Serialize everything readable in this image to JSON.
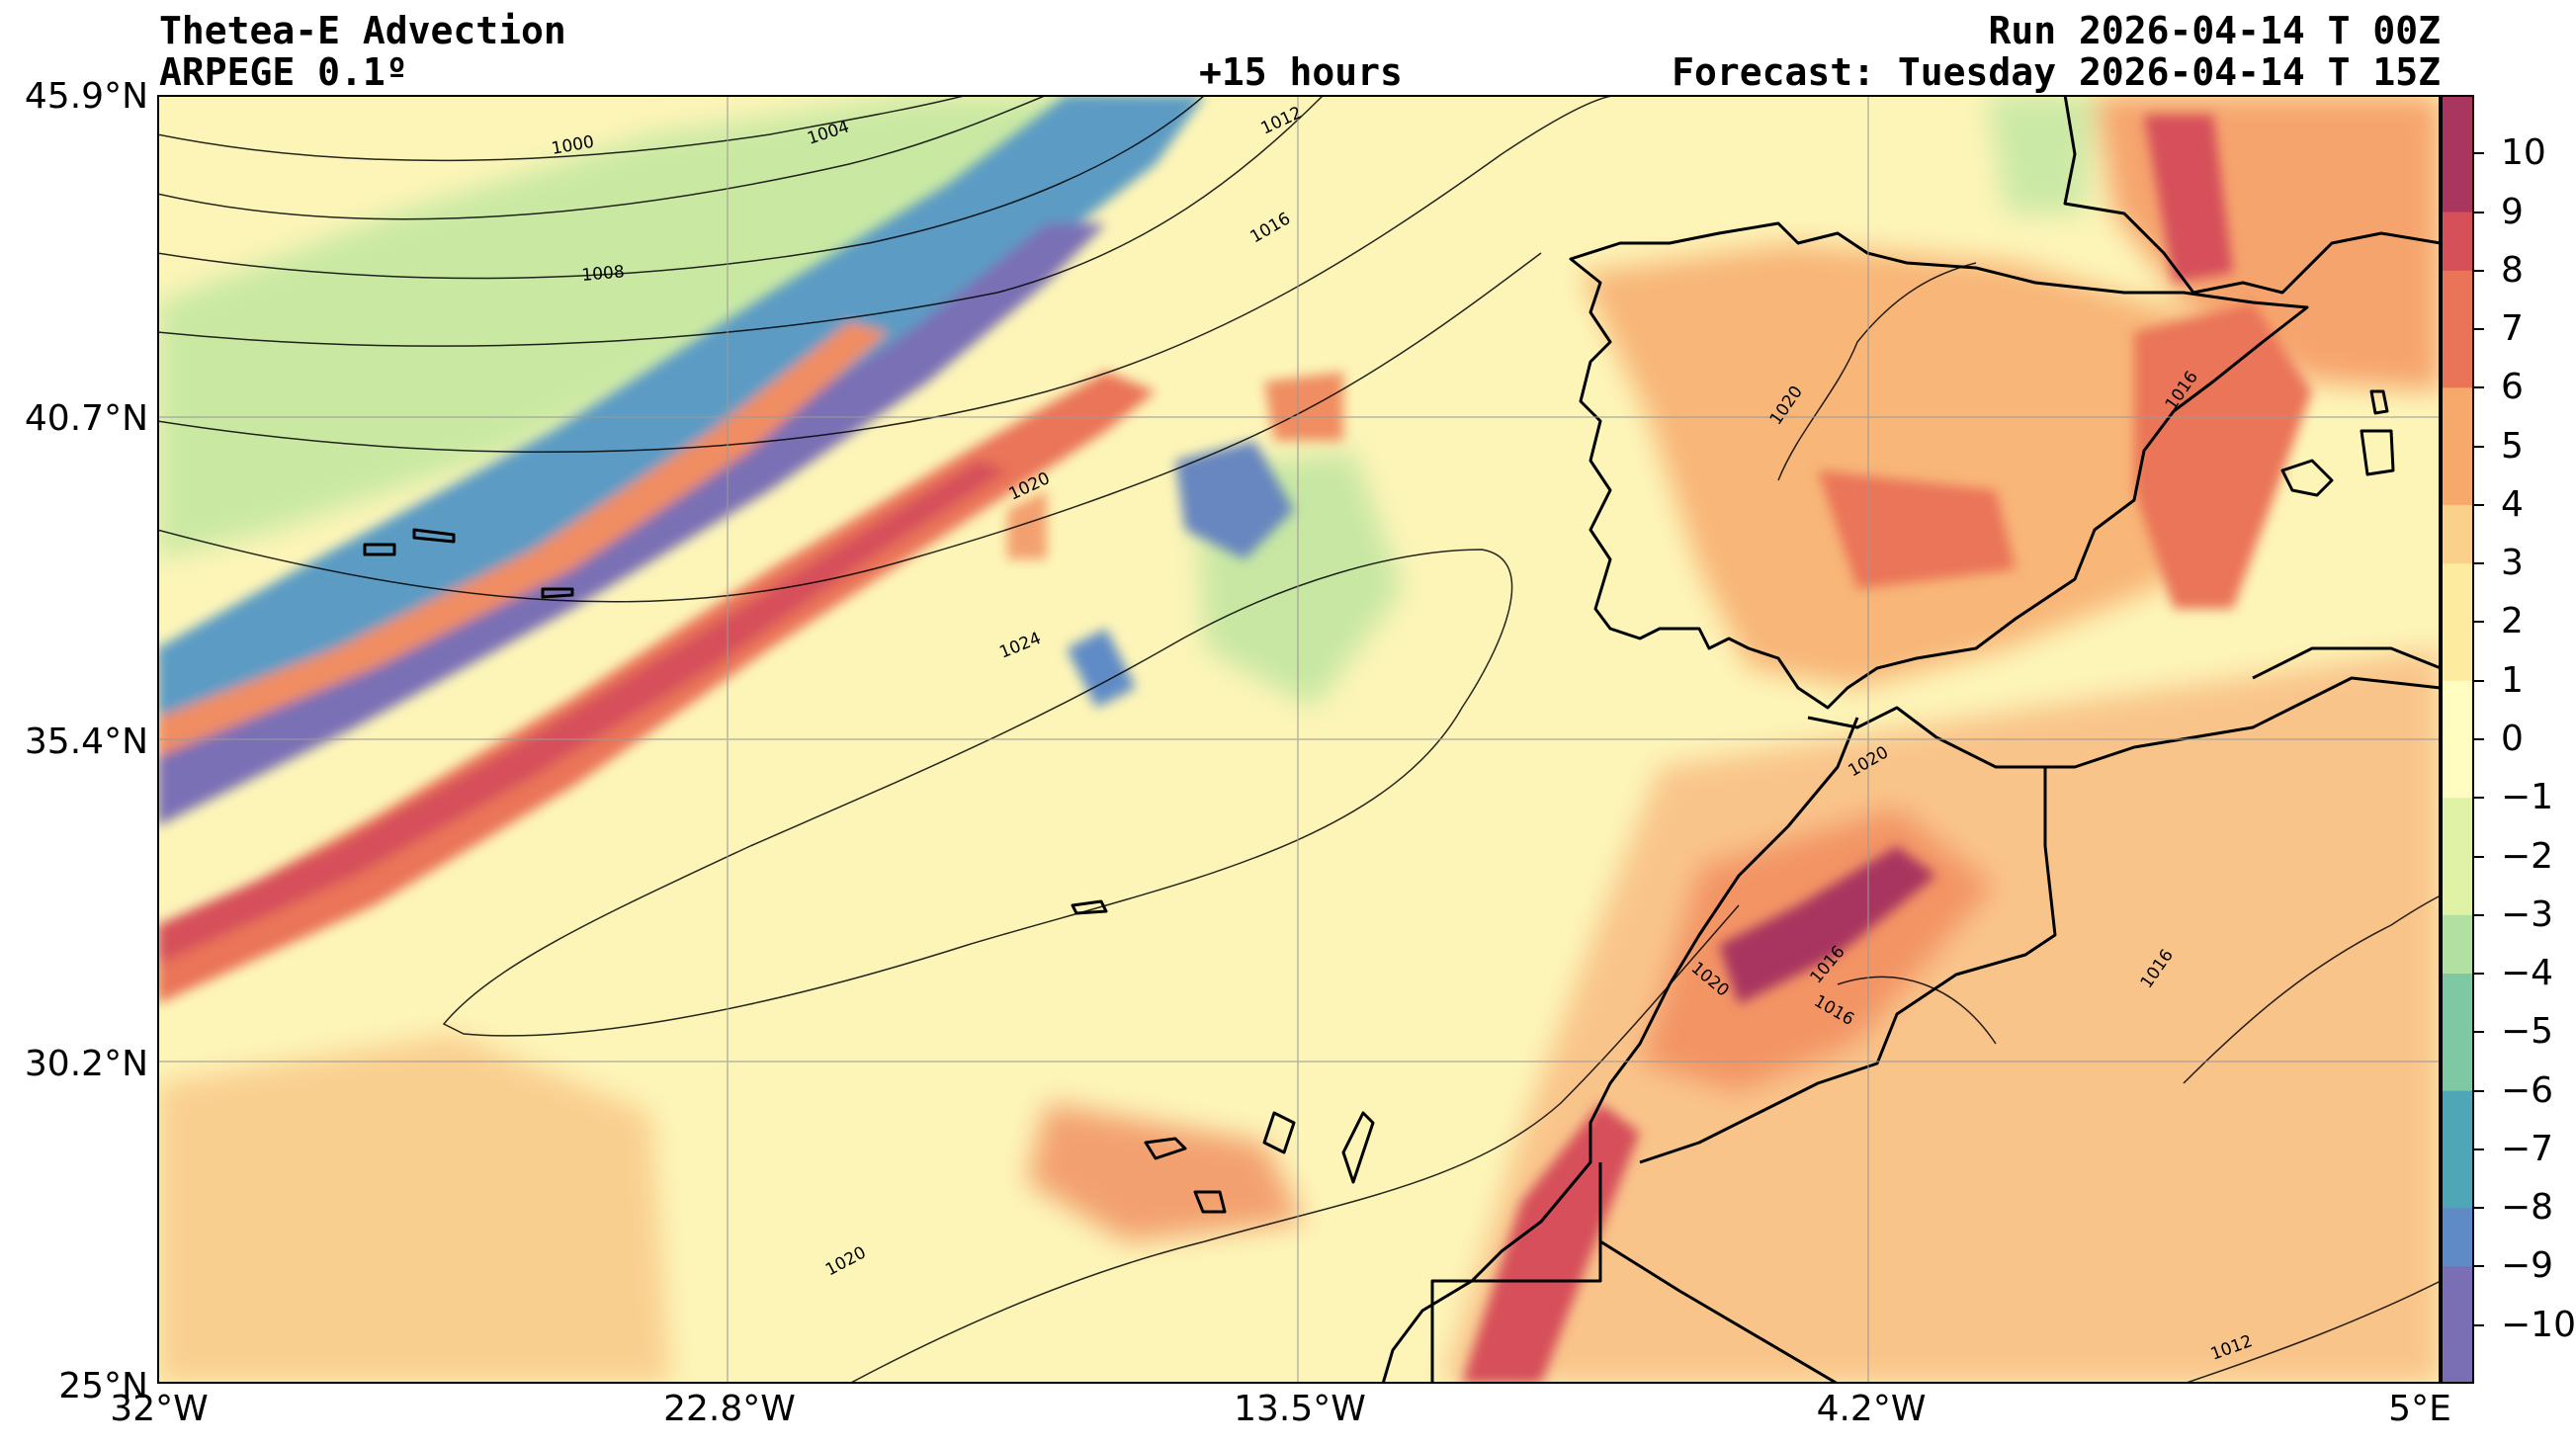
{
  "header": {
    "title": "Thetea-E Advection",
    "model": "ARPEGE 0.1º",
    "lead_time": "+15 hours",
    "run": "Run 2026-04-14 T 00Z",
    "forecast": "Forecast: Tuesday 2026-04-14 T 15Z"
  },
  "axes": {
    "lat_labels": [
      "45.9°N",
      "40.7°N",
      "35.4°N",
      "30.2°N",
      "25°N"
    ],
    "lon_labels": [
      "32°W",
      "22.8°W",
      "13.5°W",
      "4.2°W",
      "5°E"
    ]
  },
  "colorbar": {
    "tick_labels": [
      "10",
      "9",
      "8",
      "7",
      "6",
      "5",
      "4",
      "3",
      "2",
      "1",
      "0",
      "−1",
      "−2",
      "−3",
      "−4",
      "−5",
      "−6",
      "−7",
      "−8",
      "−9",
      "−10"
    ],
    "range": [
      -11,
      11
    ],
    "colors": [
      "#7a6fb5",
      "#5e8bc6",
      "#4fa6b7",
      "#7ec8a4",
      "#b2e0a2",
      "#dff2a6",
      "#fffdc0",
      "#fdeba0",
      "#fbd08a",
      "#f7a96b",
      "#ea7458",
      "#d6505a",
      "#a8365f"
    ]
  },
  "map": {
    "isobar_labels": [
      "1000",
      "1004",
      "1008",
      "1012",
      "1016",
      "1020",
      "1024",
      "1020",
      "1016",
      "1020",
      "1016",
      "1020",
      "1016",
      "1016",
      "1020",
      "1012"
    ]
  }
}
